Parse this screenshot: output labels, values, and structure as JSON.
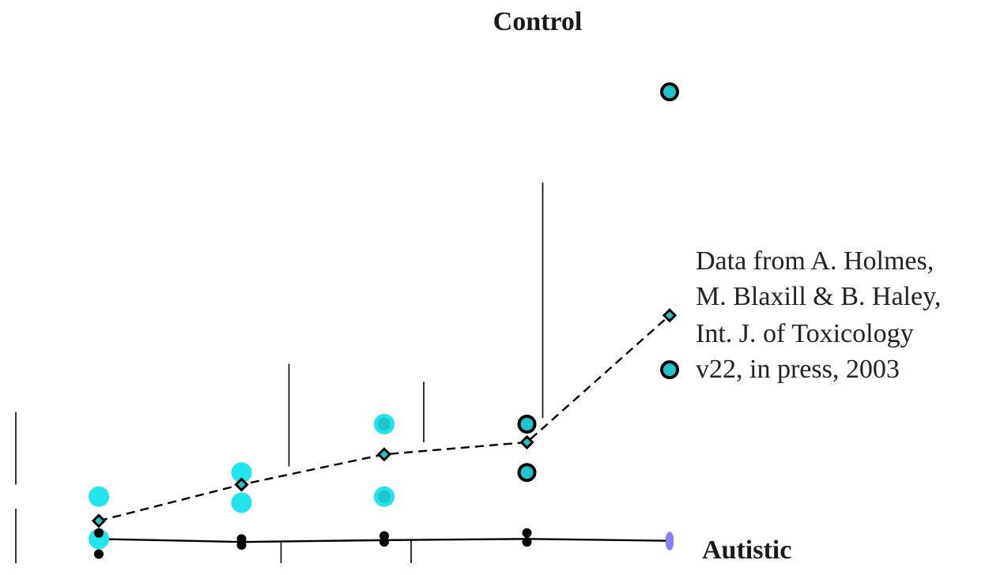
{
  "chart_data": {
    "type": "scatter",
    "title": "",
    "xlabel": "",
    "ylabel": "",
    "annotation_lines": [
      "Data from A. Holmes,",
      "M. Blaxill & B. Haley,",
      "Int. J. of Toxicology",
      "v22, in press, 2003"
    ],
    "x": [
      1,
      2,
      3,
      4,
      5
    ],
    "series": [
      {
        "name": "Control",
        "mean": [
          4,
          10,
          15,
          17,
          38
        ],
        "ranges": [
          [
            10,
            22
          ],
          [
            13,
            30
          ],
          [
            17,
            27
          ],
          [
            21,
            60
          ],
          null
        ],
        "points": [
          [
            1,
            8
          ],
          [
            1,
            1
          ],
          [
            2,
            12
          ],
          [
            2,
            7
          ],
          [
            3,
            20
          ],
          [
            3,
            8
          ],
          [
            4,
            20
          ],
          [
            4,
            12
          ],
          [
            5,
            75
          ],
          [
            5,
            29
          ]
        ],
        "colors": {
          "fill": "#20c4cc",
          "stroke": "#000000",
          "light_fill": "#22e4ec"
        },
        "line_style": "dashed"
      },
      {
        "name": "Autistic",
        "mean": [
          1,
          0.5,
          0.8,
          1,
          0.7
        ],
        "ranges": [
          [
            -3,
            6
          ],
          [
            -3,
            0.5
          ],
          [
            -3,
            1
          ],
          [
            null,
            null
          ],
          [
            null,
            null
          ]
        ],
        "points": [
          [
            1,
            2
          ],
          [
            1,
            -1.5
          ],
          [
            2,
            1
          ],
          [
            2,
            0
          ],
          [
            3,
            1.5
          ],
          [
            3,
            0.5
          ],
          [
            4,
            2
          ],
          [
            4,
            0.5
          ],
          [
            5,
            1
          ],
          [
            5,
            0.3
          ]
        ],
        "colors": {
          "fill": "#000000",
          "accent": "#8080ff"
        },
        "line_style": "solid"
      }
    ]
  }
}
